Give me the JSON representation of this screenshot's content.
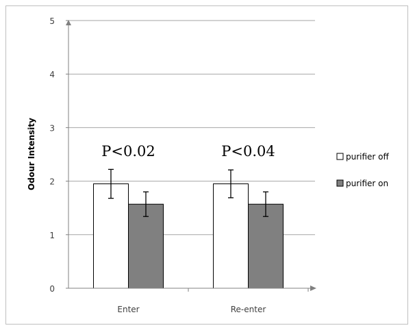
{
  "chart_data": {
    "type": "bar",
    "categories": [
      "Enter",
      "Re-enter"
    ],
    "series": [
      {
        "name": "purifier off",
        "values": [
          1.95,
          1.95
        ],
        "errors": [
          0.27,
          0.26
        ],
        "color": "#ffffff"
      },
      {
        "name": "purifier on",
        "values": [
          1.57,
          1.57
        ],
        "errors": [
          0.23,
          0.23
        ],
        "color": "#808080"
      }
    ],
    "annotations": [
      "P<0.02",
      "P<0.04"
    ],
    "ylabel": "Odour Intensity",
    "ylim": [
      0,
      5
    ],
    "yticks": [
      "0",
      "1",
      "2",
      "3",
      "4",
      "5"
    ],
    "grid": true,
    "legend_position": "right",
    "colors": {
      "bar_outline": "#000000",
      "axis": "#808080",
      "grid": "#a6a6a6"
    }
  }
}
